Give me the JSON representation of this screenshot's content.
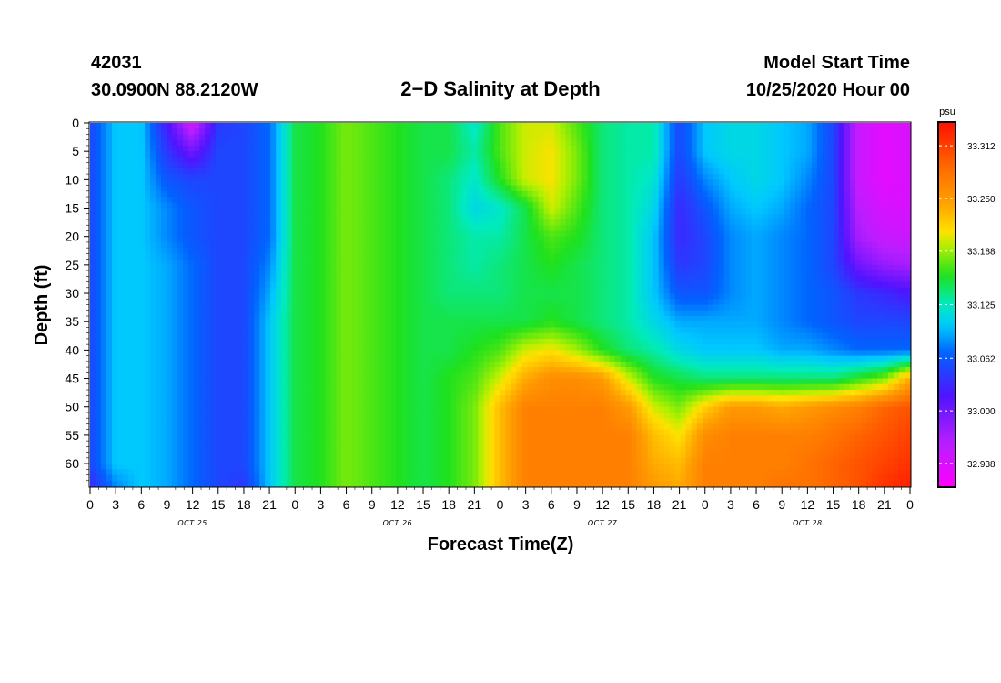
{
  "header": {
    "station_id": "42031",
    "location": "30.0900N 88.2120W",
    "title": "2−D Salinity at Depth",
    "model_label": "Model Start Time",
    "model_start": "10/25/2020 Hour 00"
  },
  "chart_data": {
    "type": "heatmap",
    "title": "2−D Salinity at Depth",
    "xlabel": "Forecast Time(Z)",
    "ylabel": "Depth (ft)",
    "x_range_hours": [
      0,
      96
    ],
    "y_range_ft": [
      0,
      64
    ],
    "x_tick_labels": [
      "0",
      "3",
      "6",
      "9",
      "12",
      "15",
      "18",
      "21",
      "0",
      "3",
      "6",
      "9",
      "12",
      "15",
      "18",
      "21",
      "0",
      "3",
      "6",
      "9",
      "12",
      "15",
      "18",
      "21",
      "0",
      "3",
      "6",
      "9",
      "12",
      "15",
      "18",
      "21",
      "0"
    ],
    "y_tick_labels": [
      "0",
      "5",
      "10",
      "15",
      "20",
      "25",
      "30",
      "35",
      "40",
      "45",
      "50",
      "55",
      "60"
    ],
    "day_labels": [
      {
        "text": "OCT 25",
        "hour": 12
      },
      {
        "text": "OCT 26",
        "hour": 36
      },
      {
        "text": "OCT 27",
        "hour": 60
      },
      {
        "text": "OCT 28",
        "hour": 84
      }
    ],
    "colorbar": {
      "unit": "psu",
      "min": 32.91,
      "max": 33.34,
      "tick_labels": [
        "33.312",
        "33.250",
        "33.188",
        "33.125",
        "33.062",
        "33.000",
        "32.938"
      ],
      "tick_values": [
        33.312,
        33.25,
        33.188,
        33.125,
        33.062,
        33.0,
        32.938
      ]
    },
    "salinity_grid": {
      "hours": [
        0,
        3,
        6,
        9,
        12,
        15,
        18,
        21,
        24,
        27,
        30,
        33,
        36,
        39,
        42,
        45,
        48,
        51,
        54,
        57,
        60,
        63,
        66,
        69,
        72,
        75,
        78,
        81,
        84,
        87,
        90,
        93,
        96
      ],
      "depths_ft": [
        0,
        5,
        10,
        15,
        20,
        25,
        30,
        35,
        40,
        45,
        50,
        55,
        60,
        64
      ],
      "values": [
        [
          33.05,
          33.1,
          33.1,
          33.02,
          32.94,
          33.04,
          33.05,
          33.07,
          33.15,
          33.16,
          33.18,
          33.17,
          33.16,
          33.15,
          33.15,
          33.12,
          33.17,
          33.2,
          33.2,
          33.17,
          33.14,
          33.13,
          33.13,
          33.05,
          33.1,
          33.11,
          33.11,
          33.1,
          33.09,
          33.05,
          32.95,
          32.93,
          32.94
        ],
        [
          33.05,
          33.1,
          33.1,
          33.04,
          33.0,
          33.05,
          33.05,
          33.07,
          33.15,
          33.16,
          33.18,
          33.17,
          33.16,
          33.15,
          33.15,
          33.13,
          33.17,
          33.2,
          33.21,
          33.18,
          33.14,
          33.13,
          33.13,
          33.05,
          33.1,
          33.11,
          33.11,
          33.1,
          33.09,
          33.05,
          32.95,
          32.93,
          32.94
        ],
        [
          33.05,
          33.1,
          33.1,
          33.06,
          33.05,
          33.05,
          33.05,
          33.07,
          33.15,
          33.16,
          33.18,
          33.17,
          33.16,
          33.15,
          33.14,
          33.12,
          33.16,
          33.2,
          33.21,
          33.18,
          33.14,
          33.13,
          33.12,
          33.04,
          33.08,
          33.1,
          33.11,
          33.1,
          33.08,
          33.05,
          32.95,
          32.93,
          32.94
        ],
        [
          33.05,
          33.1,
          33.1,
          33.08,
          33.06,
          33.05,
          33.05,
          33.07,
          33.15,
          33.16,
          33.18,
          33.17,
          33.16,
          33.15,
          33.14,
          33.11,
          33.12,
          33.15,
          33.2,
          33.17,
          33.14,
          33.13,
          33.11,
          33.03,
          33.06,
          33.09,
          33.1,
          33.09,
          33.07,
          33.05,
          32.96,
          32.94,
          32.94
        ],
        [
          33.05,
          33.1,
          33.1,
          33.08,
          33.06,
          33.05,
          33.05,
          33.07,
          33.15,
          33.16,
          33.18,
          33.17,
          33.16,
          33.15,
          33.14,
          33.13,
          33.13,
          33.15,
          33.17,
          33.16,
          33.14,
          33.13,
          33.1,
          33.03,
          33.05,
          33.08,
          33.09,
          33.08,
          33.07,
          33.05,
          32.97,
          32.95,
          32.95
        ],
        [
          33.05,
          33.1,
          33.1,
          33.09,
          33.07,
          33.05,
          33.05,
          33.08,
          33.15,
          33.16,
          33.18,
          33.17,
          33.16,
          33.15,
          33.14,
          33.13,
          33.14,
          33.15,
          33.16,
          33.15,
          33.14,
          33.13,
          33.1,
          33.04,
          33.05,
          33.08,
          33.09,
          33.08,
          33.07,
          33.05,
          33.0,
          32.98,
          32.97
        ],
        [
          33.05,
          33.1,
          33.1,
          33.09,
          33.07,
          33.05,
          33.05,
          33.09,
          33.15,
          33.16,
          33.18,
          33.17,
          33.16,
          33.15,
          33.14,
          33.14,
          33.14,
          33.15,
          33.15,
          33.15,
          33.14,
          33.13,
          33.1,
          33.06,
          33.06,
          33.08,
          33.09,
          33.08,
          33.07,
          33.06,
          33.04,
          33.03,
          33.02
        ],
        [
          33.05,
          33.1,
          33.1,
          33.09,
          33.07,
          33.05,
          33.05,
          33.1,
          33.15,
          33.16,
          33.18,
          33.17,
          33.16,
          33.15,
          33.15,
          33.15,
          33.15,
          33.15,
          33.16,
          33.15,
          33.14,
          33.13,
          33.11,
          33.09,
          33.09,
          33.09,
          33.09,
          33.08,
          33.07,
          33.06,
          33.05,
          33.05,
          33.05
        ],
        [
          33.05,
          33.1,
          33.1,
          33.09,
          33.07,
          33.05,
          33.05,
          33.1,
          33.15,
          33.16,
          33.18,
          33.17,
          33.16,
          33.15,
          33.15,
          33.16,
          33.17,
          33.2,
          33.21,
          33.19,
          33.16,
          33.14,
          33.13,
          33.11,
          33.1,
          33.1,
          33.1,
          33.09,
          33.09,
          33.08,
          33.07,
          33.07,
          33.07
        ],
        [
          33.05,
          33.1,
          33.1,
          33.09,
          33.07,
          33.05,
          33.05,
          33.1,
          33.15,
          33.16,
          33.18,
          33.17,
          33.16,
          33.15,
          33.16,
          33.17,
          33.2,
          33.24,
          33.26,
          33.26,
          33.25,
          33.2,
          33.16,
          33.15,
          33.14,
          33.14,
          33.14,
          33.14,
          33.14,
          33.14,
          33.16,
          33.18,
          33.24
        ],
        [
          33.05,
          33.1,
          33.1,
          33.09,
          33.07,
          33.05,
          33.05,
          33.1,
          33.15,
          33.16,
          33.18,
          33.17,
          33.16,
          33.15,
          33.16,
          33.18,
          33.23,
          33.27,
          33.27,
          33.27,
          33.27,
          33.25,
          33.2,
          33.18,
          33.22,
          33.25,
          33.25,
          33.24,
          33.25,
          33.26,
          33.27,
          33.29,
          33.3
        ],
        [
          33.05,
          33.1,
          33.1,
          33.09,
          33.07,
          33.05,
          33.05,
          33.1,
          33.15,
          33.16,
          33.18,
          33.17,
          33.16,
          33.15,
          33.16,
          33.18,
          33.23,
          33.27,
          33.27,
          33.27,
          33.27,
          33.27,
          33.23,
          33.21,
          33.26,
          33.27,
          33.27,
          33.27,
          33.27,
          33.28,
          33.29,
          33.3,
          33.31
        ],
        [
          33.05,
          33.1,
          33.1,
          33.09,
          33.07,
          33.05,
          33.05,
          33.1,
          33.15,
          33.16,
          33.18,
          33.17,
          33.16,
          33.15,
          33.16,
          33.18,
          33.23,
          33.27,
          33.27,
          33.27,
          33.27,
          33.27,
          33.24,
          33.23,
          33.27,
          33.27,
          33.27,
          33.27,
          33.28,
          33.29,
          33.3,
          33.31,
          33.32
        ],
        [
          33.03,
          33.08,
          33.1,
          33.09,
          33.07,
          33.05,
          33.04,
          33.1,
          33.15,
          33.16,
          33.18,
          33.17,
          33.16,
          33.15,
          33.16,
          33.18,
          33.23,
          33.27,
          33.27,
          33.27,
          33.27,
          33.27,
          33.25,
          33.24,
          33.27,
          33.27,
          33.27,
          33.28,
          33.28,
          33.29,
          33.3,
          33.32,
          33.33
        ]
      ]
    },
    "grid": false,
    "legend": "colorbar-right"
  }
}
